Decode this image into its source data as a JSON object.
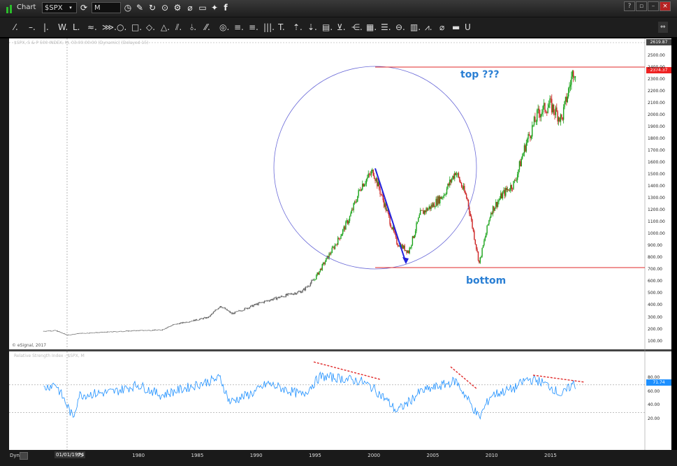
{
  "titlebar": {
    "app_title": "Chart",
    "symbol": "$SPX",
    "interval": "M"
  },
  "toolbar": {
    "tools": [
      "⁄.",
      "–.",
      "|.",
      "W.",
      "L.",
      "≈.",
      "⋙.",
      "○.",
      "□.",
      "◇.",
      "△.",
      "⫽.",
      "⫰.",
      "⁄⁄.",
      "◎.",
      "≡.",
      "≡.",
      "|||.",
      "T.",
      "⇡.",
      "⇣.",
      "▤.",
      "⊻.",
      "⋲.",
      "▦.",
      "☰.",
      "⊖.",
      "▥.",
      "⩘.",
      "⌀",
      "▬",
      "U"
    ],
    "right_btn": "⇔"
  },
  "chart": {
    "header_text": "$SPX, S & P 500 INDEX, M, 03:00:00:00 (Dynamic) (Delayed 15)",
    "copyright": "© eSignal, 2017",
    "rsi_header": "Relative Strength Index - $SPX, M",
    "last_price": "2374.37",
    "high_label": "2619.87",
    "rsi_value": "71.74",
    "top_annotation": "top ???",
    "bottom_annotation": "bottom",
    "date_box": "01/01/1974",
    "dyn_label": "Dyn",
    "y_ticks": [
      "2500.00",
      "2400.00",
      "2300.00",
      "2200.00",
      "2100.00",
      "2000.00",
      "1900.00",
      "1800.00",
      "1700.00",
      "1600.00",
      "1500.00",
      "1400.00",
      "1300.00",
      "1200.00",
      "1100.00",
      "1000.00",
      "900.00",
      "800.00",
      "700.00",
      "600.00",
      "500.00",
      "400.00",
      "300.00",
      "200.00",
      "100.00"
    ],
    "rsi_ticks": [
      "80.00",
      "60.00",
      "40.00",
      "20.00"
    ],
    "x_ticks": [
      "75",
      "1980",
      "1985",
      "1990",
      "1995",
      "2000",
      "2005",
      "2010",
      "2015"
    ]
  },
  "colors": {
    "price_up": "#1aa31a",
    "price_down": "#cc2222",
    "rsi_line": "#1e90ff",
    "circle": "#6a6ad8",
    "arrow": "#2222dd",
    "level_line": "#e02a2a",
    "annotation": "#2a7fd4"
  }
}
